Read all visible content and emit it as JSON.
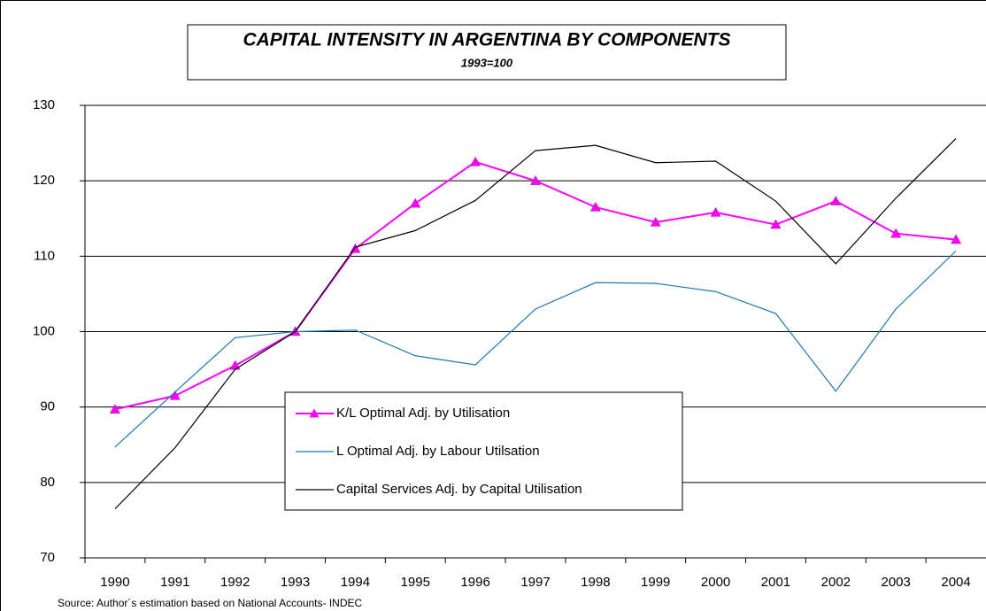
{
  "chart_data": {
    "type": "line",
    "title": "CAPITAL INTENSITY IN ARGENTINA BY COMPONENTS",
    "subtitle": "1993=100",
    "source": "Source: Author´s estimation based on National Accounts- INDEC",
    "categories": [
      "1990",
      "1991",
      "1992",
      "1993",
      "1994",
      "1995",
      "1996",
      "1997",
      "1998",
      "1999",
      "2000",
      "2001",
      "2002",
      "2003",
      "2004"
    ],
    "series": [
      {
        "name": "K/L Optimal Adj. by Utilisation",
        "color": "#ff00ff",
        "marker": "triangle",
        "values": [
          89.7,
          91.5,
          95.5,
          100,
          111,
          117,
          122.5,
          120,
          116.5,
          114.5,
          115.8,
          114.2,
          117.3,
          113,
          112.2
        ]
      },
      {
        "name": "L Optimal Adj. by Labour Utilsation",
        "color": "#1f77b4",
        "values": [
          84.7,
          92,
          99.2,
          100,
          100.2,
          96.8,
          95.6,
          103,
          106.5,
          106.4,
          105.3,
          102.4,
          92.1,
          103,
          110.7
        ]
      },
      {
        "name": "Capital Services Adj. by Capital Utilisation",
        "color": "#000000",
        "values": [
          76.5,
          84.6,
          95,
          100,
          111.2,
          113.4,
          117.4,
          124,
          124.7,
          122.4,
          122.6,
          117.3,
          109,
          117.7,
          125.6
        ]
      }
    ],
    "ylim": [
      70,
      130
    ],
    "yticks": [
      70,
      80,
      90,
      100,
      110,
      120,
      130
    ],
    "grid": true
  }
}
